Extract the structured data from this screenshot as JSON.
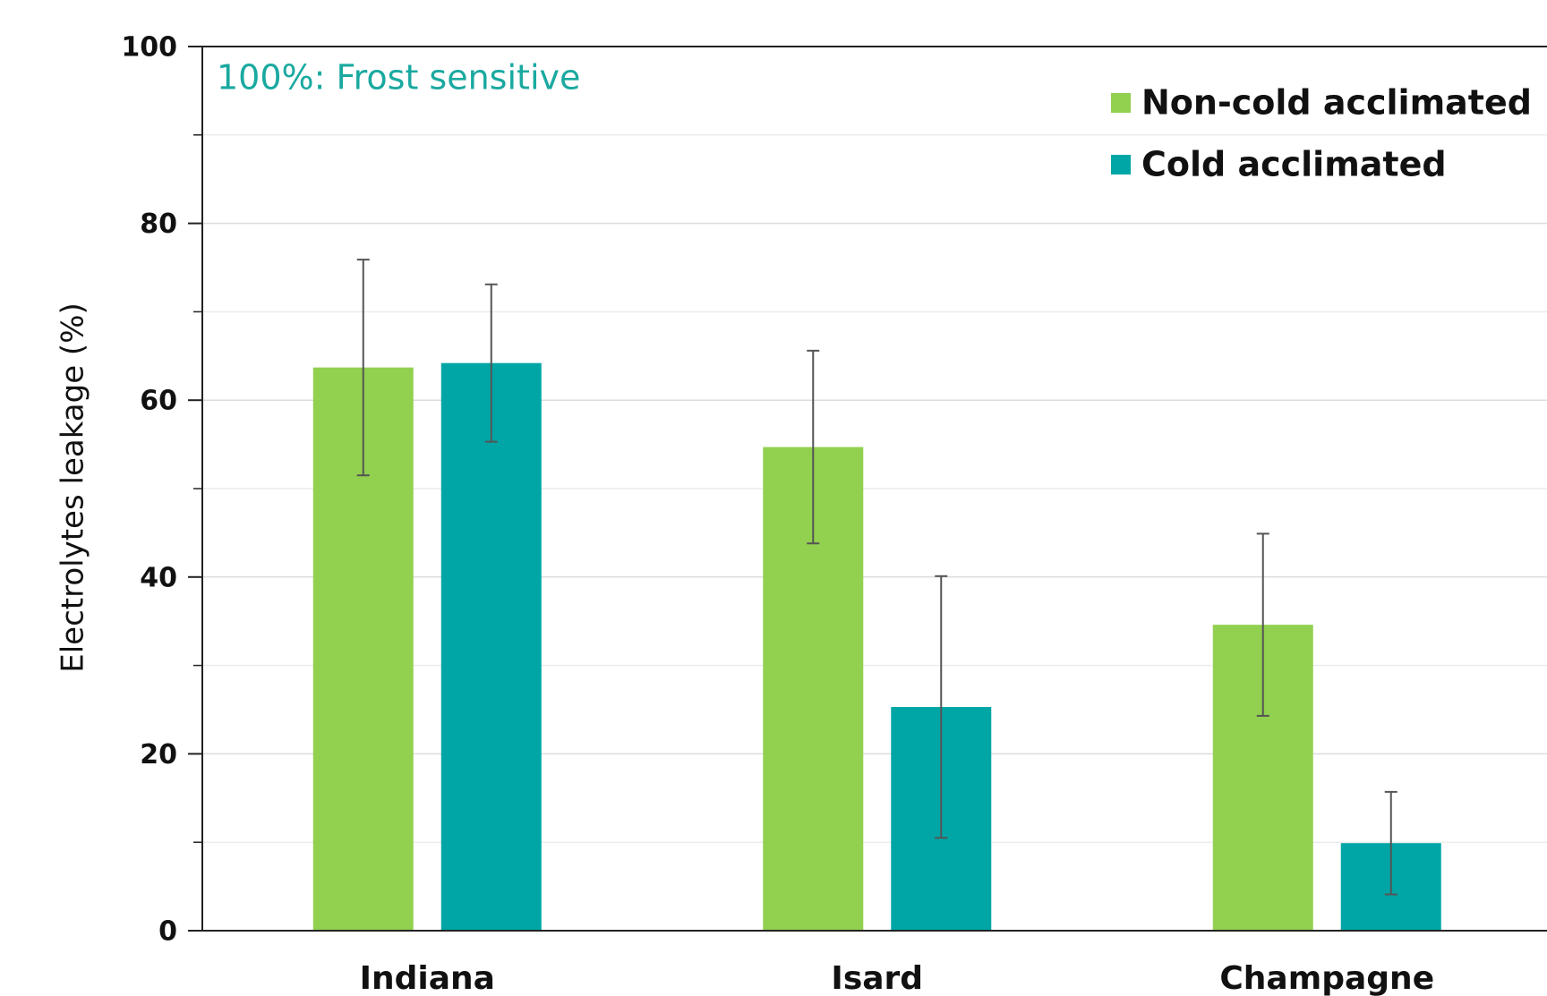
{
  "chart_data": {
    "type": "bar",
    "y_label": "Electrolytes leakage (%)",
    "annotation": "100%: Frost sensitive",
    "categories": [
      "Indiana",
      "Isard",
      "Champagne"
    ],
    "series": [
      {
        "name": "Non-cold acclimated",
        "color": "#92d050",
        "values": [
          63.7,
          54.7,
          34.6
        ],
        "errors": [
          12.2,
          10.9,
          10.3
        ]
      },
      {
        "name": "Cold acclimated",
        "color": "#00a6a6",
        "values": [
          64.2,
          25.3,
          9.9
        ],
        "errors": [
          8.9,
          14.8,
          5.8
        ]
      }
    ],
    "ylim": [
      0,
      100
    ],
    "yticks": [
      0,
      20,
      40,
      60,
      80,
      100
    ],
    "minor_yticks": [
      10,
      30,
      50,
      70,
      90
    ],
    "grid": true,
    "legend": "top-right"
  }
}
